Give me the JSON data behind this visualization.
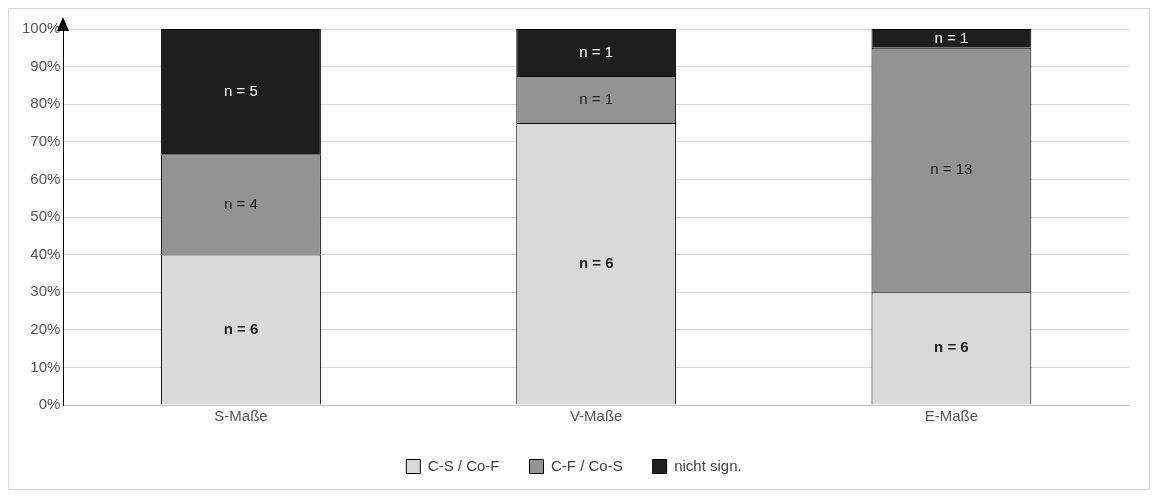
{
  "chart_data": {
    "type": "bar",
    "stacked": true,
    "categories": [
      "S-Maße",
      "V-Maße",
      "E-Maße"
    ],
    "series": [
      {
        "name": "C-S / Co-F",
        "color": "#d9d9d9",
        "values": [
          40,
          75,
          30
        ]
      },
      {
        "name": "C-F / Co-S",
        "color": "#939393",
        "values": [
          26.7,
          12.5,
          65
        ]
      },
      {
        "name": "nicht sign.",
        "color": "#1e1e1e",
        "values": [
          33.3,
          12.5,
          5
        ]
      }
    ],
    "annotations": [
      "n = 6",
      "n = 4",
      "n = 5",
      "n = 6",
      "n = 1",
      "n = 1",
      "n = 6",
      "n = 13",
      "n = 1"
    ],
    "ylim": [
      0,
      100
    ],
    "yticks": [
      {
        "value": 0,
        "label": "0%"
      },
      {
        "value": 10,
        "label": "10%"
      },
      {
        "value": 20,
        "label": "20%"
      },
      {
        "value": 30,
        "label": "30%"
      },
      {
        "value": 40,
        "label": "40%"
      },
      {
        "value": 50,
        "label": "50%"
      },
      {
        "value": 60,
        "label": "60%"
      },
      {
        "value": 70,
        "label": "70%"
      },
      {
        "value": 80,
        "label": "80%"
      },
      {
        "value": 90,
        "label": "90%"
      },
      {
        "value": 100,
        "label": "100%"
      }
    ],
    "grid": "y",
    "legend": "bottom"
  }
}
